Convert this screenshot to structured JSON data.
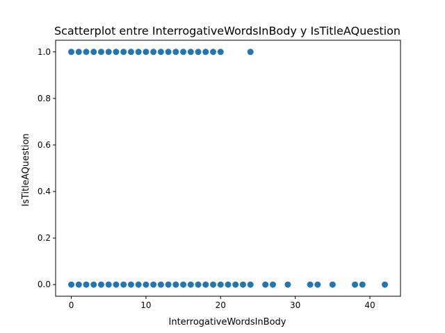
{
  "chart_data": {
    "type": "scatter",
    "title": "Scatterplot entre InterrogativeWordsInBody y IsTitleAQuestion",
    "xlabel": "InterrogativeWordsInBody",
    "ylabel": "IsTitleAQuestion",
    "xlim": [
      -2.1,
      44.1
    ],
    "ylim": [
      -0.05,
      1.05
    ],
    "xticks": [
      0,
      10,
      20,
      30,
      40
    ],
    "yticks": [
      0.0,
      0.2,
      0.4,
      0.6,
      0.8,
      1.0
    ],
    "xtick_labels": [
      "0",
      "10",
      "20",
      "30",
      "40"
    ],
    "ytick_labels": [
      "0.0",
      "0.2",
      "0.4",
      "0.6",
      "0.8",
      "1.0"
    ],
    "grid": false,
    "point_color": "#1f77b4",
    "points": [
      {
        "x": 0,
        "y": 1
      },
      {
        "x": 1,
        "y": 1
      },
      {
        "x": 2,
        "y": 1
      },
      {
        "x": 3,
        "y": 1
      },
      {
        "x": 4,
        "y": 1
      },
      {
        "x": 5,
        "y": 1
      },
      {
        "x": 6,
        "y": 1
      },
      {
        "x": 7,
        "y": 1
      },
      {
        "x": 8,
        "y": 1
      },
      {
        "x": 9,
        "y": 1
      },
      {
        "x": 10,
        "y": 1
      },
      {
        "x": 11,
        "y": 1
      },
      {
        "x": 12,
        "y": 1
      },
      {
        "x": 13,
        "y": 1
      },
      {
        "x": 14,
        "y": 1
      },
      {
        "x": 15,
        "y": 1
      },
      {
        "x": 16,
        "y": 1
      },
      {
        "x": 17,
        "y": 1
      },
      {
        "x": 18,
        "y": 1
      },
      {
        "x": 19,
        "y": 1
      },
      {
        "x": 20,
        "y": 1
      },
      {
        "x": 24,
        "y": 1
      },
      {
        "x": 0,
        "y": 0
      },
      {
        "x": 1,
        "y": 0
      },
      {
        "x": 2,
        "y": 0
      },
      {
        "x": 3,
        "y": 0
      },
      {
        "x": 4,
        "y": 0
      },
      {
        "x": 5,
        "y": 0
      },
      {
        "x": 6,
        "y": 0
      },
      {
        "x": 7,
        "y": 0
      },
      {
        "x": 8,
        "y": 0
      },
      {
        "x": 9,
        "y": 0
      },
      {
        "x": 10,
        "y": 0
      },
      {
        "x": 11,
        "y": 0
      },
      {
        "x": 12,
        "y": 0
      },
      {
        "x": 13,
        "y": 0
      },
      {
        "x": 14,
        "y": 0
      },
      {
        "x": 15,
        "y": 0
      },
      {
        "x": 16,
        "y": 0
      },
      {
        "x": 17,
        "y": 0
      },
      {
        "x": 18,
        "y": 0
      },
      {
        "x": 19,
        "y": 0
      },
      {
        "x": 20,
        "y": 0
      },
      {
        "x": 21,
        "y": 0
      },
      {
        "x": 22,
        "y": 0
      },
      {
        "x": 23,
        "y": 0
      },
      {
        "x": 24,
        "y": 0
      },
      {
        "x": 26,
        "y": 0
      },
      {
        "x": 27,
        "y": 0
      },
      {
        "x": 29,
        "y": 0
      },
      {
        "x": 32,
        "y": 0
      },
      {
        "x": 33,
        "y": 0
      },
      {
        "x": 35,
        "y": 0
      },
      {
        "x": 38,
        "y": 0
      },
      {
        "x": 39,
        "y": 0
      },
      {
        "x": 42,
        "y": 0
      }
    ]
  }
}
